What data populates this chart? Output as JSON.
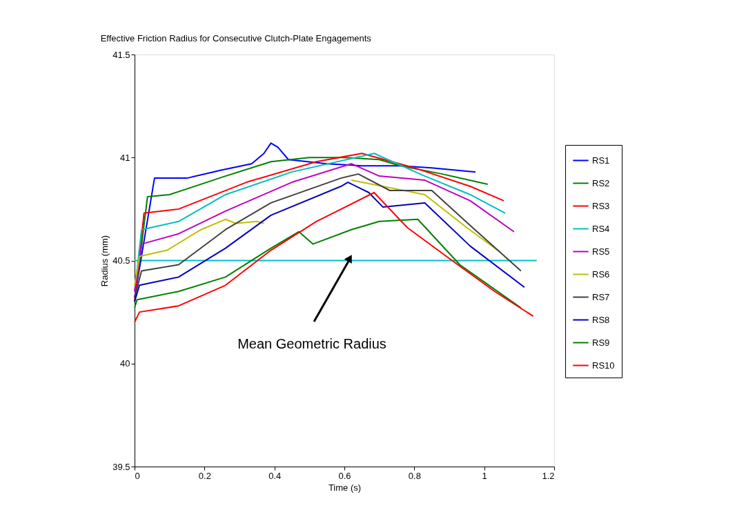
{
  "chart_data": {
    "type": "line",
    "title": "Effective Friction Radius for Consecutive Clutch-Plate Engagements",
    "xlabel": "Time (s)",
    "ylabel": "Radius (mm)",
    "xlim": [
      0,
      1.2
    ],
    "xticks": [
      0,
      0.2,
      0.4,
      0.6,
      0.8,
      1,
      1.2
    ],
    "ylim": [
      39.5,
      41.5
    ],
    "yticks": [
      39.5,
      40,
      40.5,
      41,
      41.5
    ],
    "grid": false,
    "legend": "right",
    "line_style": "solid",
    "marker": "none",
    "series": [
      {
        "name": "RS1",
        "color": "#0000ff",
        "x": [
          0,
          0.057,
          0.15,
          0.25,
          0.335,
          0.37,
          0.39,
          0.41,
          0.44,
          0.55,
          0.65,
          0.76,
          0.85,
          0.975
        ],
        "values": [
          40.32,
          40.9,
          40.9,
          40.94,
          40.97,
          41.02,
          41.07,
          41.05,
          40.99,
          40.97,
          40.96,
          40.96,
          40.95,
          40.93
        ]
      },
      {
        "name": "RS2",
        "color": "#008000",
        "x": [
          0,
          0.037,
          0.1,
          0.26,
          0.39,
          0.5,
          0.6,
          0.7,
          0.76,
          0.88,
          1.01
        ],
        "values": [
          40.3,
          40.81,
          40.82,
          40.91,
          40.98,
          41.0,
          41.0,
          40.99,
          40.96,
          40.92,
          40.87
        ]
      },
      {
        "name": "RS3",
        "color": "#ff0000",
        "x": [
          0,
          0.027,
          0.126,
          0.32,
          0.52,
          0.65,
          0.8,
          0.96,
          1.056
        ],
        "values": [
          40.3,
          40.73,
          40.75,
          40.88,
          40.98,
          41.02,
          40.95,
          40.86,
          40.79
        ]
      },
      {
        "name": "RS4",
        "color": "#00bfbf",
        "x": [
          0,
          0.02,
          0.126,
          0.26,
          0.45,
          0.685,
          0.83,
          0.96,
          1.06
        ],
        "values": [
          40.35,
          40.65,
          40.69,
          40.82,
          40.93,
          41.02,
          40.91,
          40.82,
          40.73
        ]
      },
      {
        "name": "RS5",
        "color": "#bf00bf",
        "x": [
          0,
          0.02,
          0.126,
          0.26,
          0.45,
          0.62,
          0.7,
          0.83,
          0.96,
          1.085
        ],
        "values": [
          40.35,
          40.58,
          40.63,
          40.74,
          40.88,
          40.97,
          40.91,
          40.89,
          40.79,
          40.64
        ]
      },
      {
        "name": "RS6",
        "color": "#bfbf00",
        "x": [
          0,
          0.014,
          0.093,
          0.19,
          0.26,
          0.29,
          0.35,
          0.37,
          0.48,
          0.62,
          0.83,
          0.95,
          1.046
        ],
        "values": [
          40.38,
          40.52,
          40.55,
          40.65,
          40.7,
          40.68,
          40.69,
          40.68,
          null,
          40.89,
          40.82,
          40.66,
          40.54
        ]
      },
      {
        "name": "RS7",
        "color": "#404040",
        "x": [
          0,
          0.02,
          0.126,
          0.26,
          0.39,
          0.59,
          0.64,
          0.73,
          0.85,
          0.96,
          1.105
        ],
        "values": [
          40.32,
          40.45,
          40.48,
          40.65,
          40.78,
          40.9,
          40.92,
          40.84,
          40.84,
          40.67,
          40.45
        ]
      },
      {
        "name": "RS8",
        "color": "#0000bf",
        "x": [
          0,
          0.014,
          0.126,
          0.26,
          0.39,
          0.59,
          0.61,
          0.67,
          0.71,
          0.83,
          0.96,
          1.115
        ],
        "values": [
          40.3,
          40.38,
          40.42,
          40.56,
          40.72,
          40.86,
          40.88,
          40.83,
          40.76,
          40.78,
          40.57,
          40.37
        ]
      },
      {
        "name": "RS9",
        "color": "#008000",
        "x": [
          0,
          0.007,
          0.126,
          0.26,
          0.39,
          0.47,
          0.51,
          0.62,
          0.7,
          0.81,
          0.93,
          1.105
        ],
        "values": [
          40.27,
          40.31,
          40.35,
          40.42,
          40.56,
          40.64,
          40.58,
          40.65,
          40.69,
          40.7,
          40.48,
          40.27
        ]
      },
      {
        "name": "RS10",
        "color": "#ff0000",
        "x": [
          0,
          0.014,
          0.126,
          0.26,
          0.39,
          0.52,
          0.685,
          0.78,
          0.9,
          1.03,
          1.14
        ],
        "values": [
          40.2,
          40.25,
          40.28,
          40.38,
          40.55,
          40.69,
          40.83,
          40.66,
          40.51,
          40.35,
          40.23
        ]
      },
      {
        "color": "#00bfbf",
        "x": [
          0,
          1.15
        ],
        "values": [
          40.5,
          40.5
        ]
      }
    ],
    "annotations": [
      "Mean Geometric Radius"
    ]
  }
}
